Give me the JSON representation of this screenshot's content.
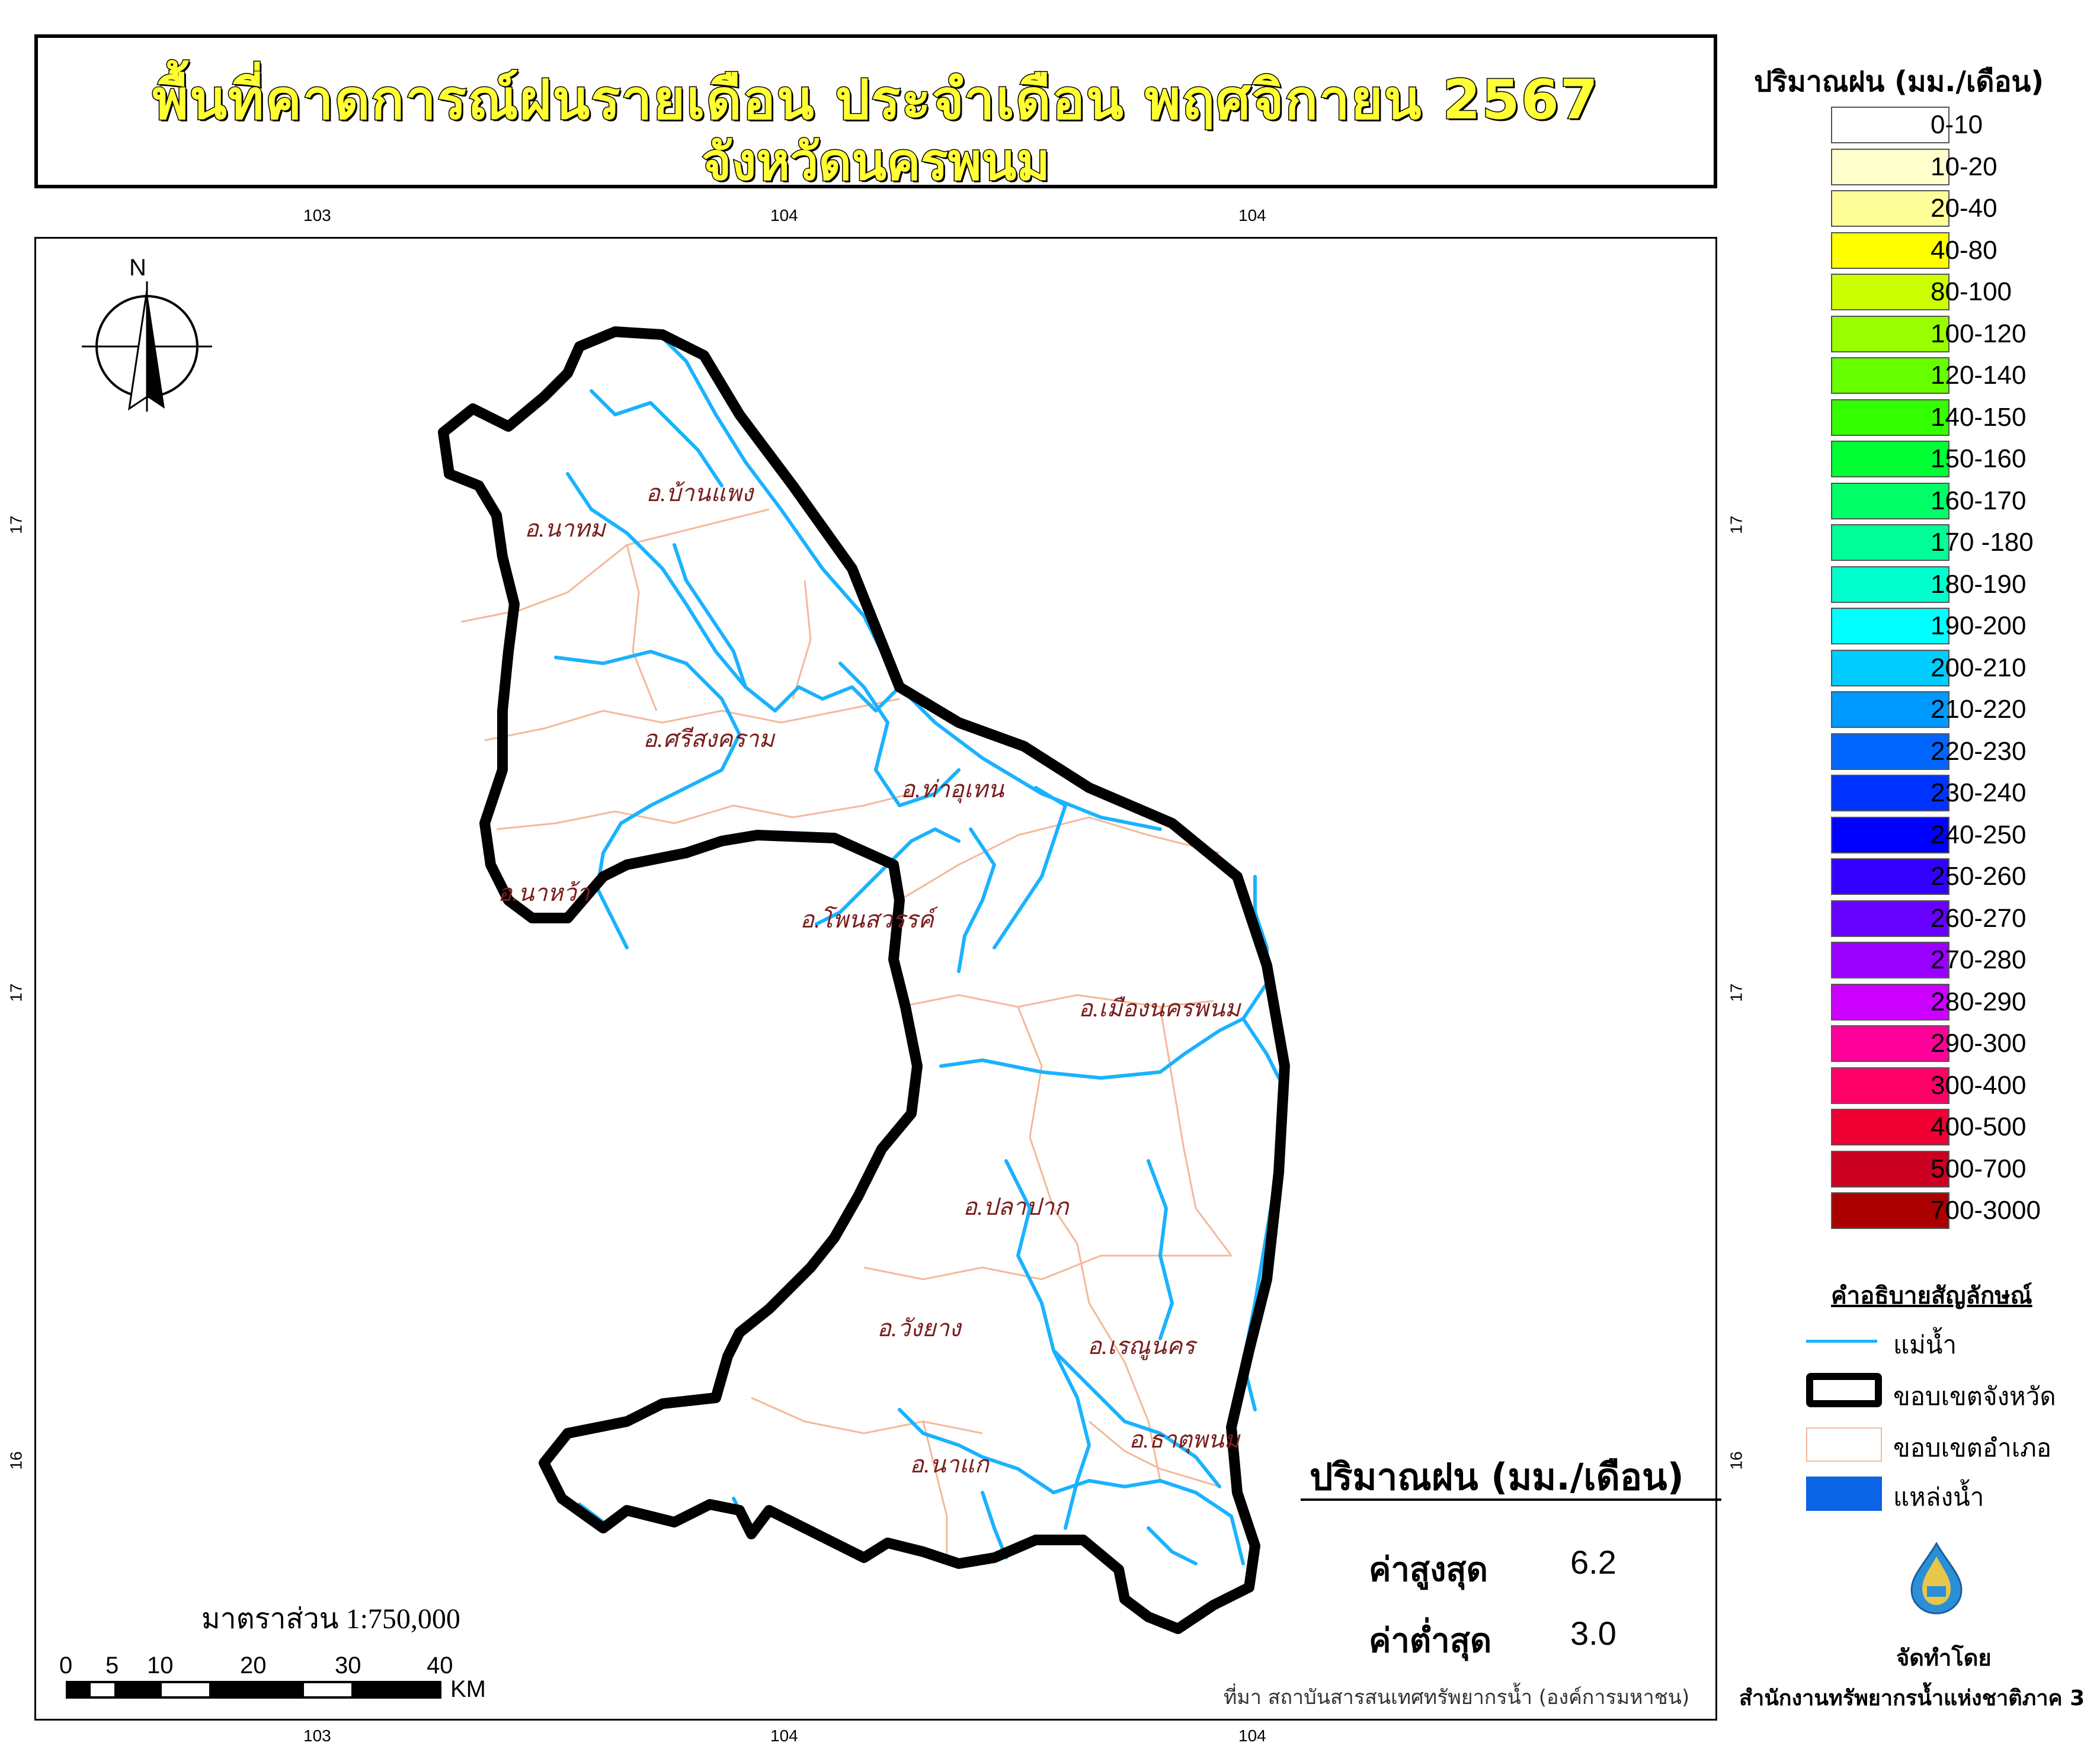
{
  "title": {
    "line1": "พื้นที่คาดการณ์ฝนรายเดือน ประจำเดือน พฤศจิกายน 2567",
    "line2": "จังหวัดนครพนม"
  },
  "grid": {
    "top_labels": [
      "103",
      "104",
      "104"
    ],
    "bottom_labels": [
      "103",
      "104",
      "104"
    ],
    "left_labels": [
      "17",
      "17",
      "16"
    ],
    "right_labels": [
      "17",
      "17",
      "16"
    ]
  },
  "north_arrow": {
    "label": "N"
  },
  "districts": [
    "อ.บ้านแพง",
    "อ.นาทม",
    "อ.ศรีสงคราม",
    "อ.ท่าอุเทน",
    "อ.นาหว้า",
    "อ.โพนสวรรค์",
    "อ.เมืองนครพนม",
    "อ.ปลาปาก",
    "อ.วังยาง",
    "อ.เรณูนคร",
    "อ.ธาตุพนม",
    "อ.นาแก"
  ],
  "legend": {
    "title": "ปริมาณฝน (มม./เดือน)",
    "classes": [
      {
        "label": "0-10",
        "color": "#ffffff"
      },
      {
        "label": "10-20",
        "color": "#ffffcc"
      },
      {
        "label": "20-40",
        "color": "#ffff99"
      },
      {
        "label": "40-80",
        "color": "#ffff00"
      },
      {
        "label": "80-100",
        "color": "#ccff00"
      },
      {
        "label": "100-120",
        "color": "#99ff00"
      },
      {
        "label": "120-140",
        "color": "#66ff00"
      },
      {
        "label": "140-150",
        "color": "#33ff00"
      },
      {
        "label": "150-160",
        "color": "#00ff33"
      },
      {
        "label": "160-170",
        "color": "#00ff66"
      },
      {
        "label": "170 -180",
        "color": "#00ff99"
      },
      {
        "label": "180-190",
        "color": "#00ffcc"
      },
      {
        "label": "190-200",
        "color": "#00ffff"
      },
      {
        "label": "200-210",
        "color": "#00ccff"
      },
      {
        "label": "210-220",
        "color": "#0099ff"
      },
      {
        "label": "220-230",
        "color": "#0066ff"
      },
      {
        "label": "230-240",
        "color": "#0033ff"
      },
      {
        "label": "240-250",
        "color": "#0000ff"
      },
      {
        "label": "250-260",
        "color": "#3300ff"
      },
      {
        "label": "260-270",
        "color": "#6600ff"
      },
      {
        "label": "270-280",
        "color": "#9900ff"
      },
      {
        "label": "280-290",
        "color": "#cc00ff"
      },
      {
        "label": "290-300",
        "color": "#ff0099"
      },
      {
        "label": "300-400",
        "color": "#ff0066"
      },
      {
        "label": "400-500",
        "color": "#ee0033"
      },
      {
        "label": "500-700",
        "color": "#cc0022"
      },
      {
        "label": "700-3000",
        "color": "#aa0000"
      }
    ]
  },
  "symbols": {
    "title": "คำอธิบายสัญลักษณ์",
    "items": [
      {
        "label": "แม่น้ำ",
        "color": "#1ab2ff"
      },
      {
        "label": "ขอบเขตจังหวัด",
        "color": "#000000"
      },
      {
        "label": "ขอบเขตอำเภอ",
        "color": "#f4b89a"
      },
      {
        "label": "แหล่งน้ำ",
        "color": "#0b63e5"
      }
    ]
  },
  "stats": {
    "title": "ปริมาณฝน (มม./เดือน)",
    "max_label": "ค่าสูงสุด",
    "max_value": "6.2",
    "min_label": "ค่าต่ำสุด",
    "min_value": "3.0"
  },
  "scale": {
    "text": "มาตราส่วน 1:750,000",
    "ticks": [
      "0",
      "5",
      "10",
      "20",
      "30",
      "40"
    ],
    "unit": "KM"
  },
  "source": "ที่มา  สถาบันสารสนเทศทรัพยากรน้ำ (องค์การมหาชน)",
  "credit": {
    "label": "จัดทำโดย",
    "org": "สำนักงานทรัพยากรน้ำแห่งชาติภาค 3"
  }
}
